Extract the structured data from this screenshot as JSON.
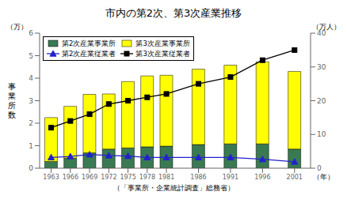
{
  "chart_data": {
    "type": "bar",
    "title": "市内の第2次、第3次産業推移",
    "x": [
      1963,
      1966,
      1969,
      1972,
      1975,
      1978,
      1981,
      1986,
      1991,
      1996,
      2001
    ],
    "xlim": [
      1961.2,
      2003.5
    ],
    "xticks": [
      1963,
      1966,
      1969,
      1972,
      1975,
      1978,
      1981,
      1986,
      1991,
      1996,
      2001
    ],
    "xlabel": "（年）",
    "ylabel": "事\n業\n所\n数",
    "y_unit": "（万）",
    "y2label": "（万人）",
    "source": "（「事業所・企業統計調査」総務省）",
    "ylim": [
      0,
      6
    ],
    "yticks": [
      0,
      1,
      2,
      3,
      4,
      5,
      6
    ],
    "y2lim": [
      0,
      40
    ],
    "y2ticks": [
      0,
      10,
      20,
      30,
      40
    ],
    "stacked": true,
    "grid": false,
    "legend": "upper left",
    "series": [
      {
        "name": "第2次産業事業所",
        "type": "bar",
        "color": "#3a7a52",
        "values": [
          0.3,
          0.45,
          0.68,
          0.85,
          0.9,
          0.95,
          0.98,
          1.05,
          1.08,
          1.08,
          0.85
        ]
      },
      {
        "name": "第3次産業事業所",
        "type": "bar",
        "color": "#ffff00",
        "values": [
          1.95,
          2.3,
          2.6,
          2.45,
          2.95,
          3.15,
          3.15,
          3.35,
          3.5,
          3.65,
          3.45
        ]
      },
      {
        "name": "第2次産業従業者",
        "type": "line",
        "axis": "y2",
        "color": "#2222cc",
        "marker": "triangle",
        "values": [
          3.2,
          3.5,
          4.05,
          3.75,
          3.6,
          3.2,
          3.2,
          3.2,
          3.2,
          2.65,
          1.9
        ]
      },
      {
        "name": "第3次産業従業者",
        "type": "line",
        "axis": "y2",
        "color": "#000000",
        "marker": "square",
        "values": [
          12,
          14,
          16,
          19,
          20,
          21,
          22,
          25,
          27,
          32,
          35
        ]
      }
    ]
  }
}
